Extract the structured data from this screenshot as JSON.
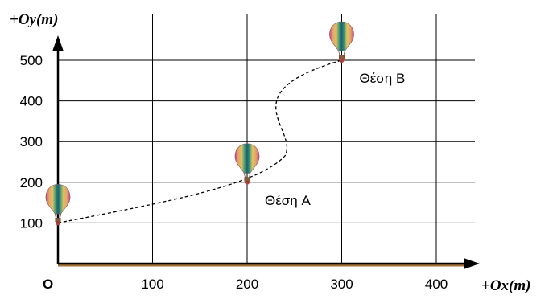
{
  "y_axis_title": "+Oy(m)",
  "x_axis_title": "+Ox(m)",
  "origin_label": "O",
  "x_ticks": [
    "100",
    "200",
    "300",
    "400"
  ],
  "y_ticks": [
    "100",
    "200",
    "300",
    "400",
    "500"
  ],
  "positions": [
    {
      "label": "",
      "x": 0,
      "y": 100
    },
    {
      "label": "Θέση A",
      "x": 200,
      "y": 200
    },
    {
      "label": "Θέση B",
      "x": 300,
      "y": 500
    }
  ],
  "path_style": "dashed",
  "colors": {
    "grid": "#000000",
    "axis": "#000000",
    "axis_shadow": "#a0703a",
    "path": "#000000",
    "point": "#b0403a"
  },
  "icons": [
    "hot-air-balloon-icon"
  ]
}
